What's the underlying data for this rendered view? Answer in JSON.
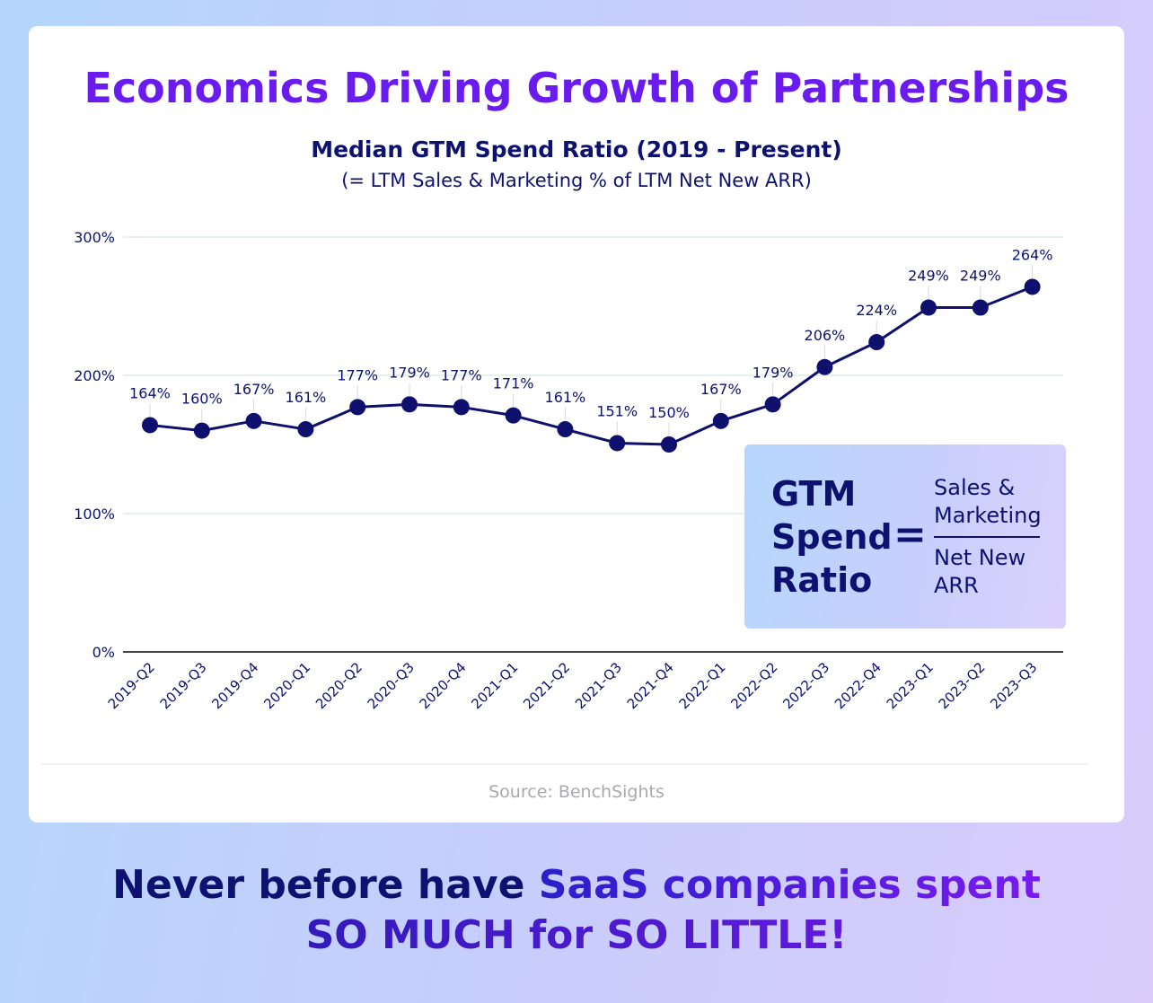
{
  "header": {
    "title": "Economics Driving Growth of Partnerships"
  },
  "chart_data": {
    "type": "line",
    "title": "Median GTM Spend Ratio (2019 - Present)",
    "subtitle": "(= LTM Sales & Marketing % of LTM Net New ARR)",
    "xlabel": "",
    "ylabel": "",
    "ylim": [
      0,
      300
    ],
    "yticks": [
      0,
      100,
      200,
      300
    ],
    "ytick_labels": [
      "0%",
      "100%",
      "200%",
      "300%"
    ],
    "categories": [
      "2019-Q2",
      "2019-Q3",
      "2019-Q4",
      "2020-Q1",
      "2020-Q2",
      "2020-Q3",
      "2020-Q4",
      "2021-Q1",
      "2021-Q2",
      "2021-Q3",
      "2021-Q4",
      "2022-Q1",
      "2022-Q2",
      "2022-Q3",
      "2022-Q4",
      "2023-Q1",
      "2023-Q2",
      "2023-Q3"
    ],
    "series": [
      {
        "name": "Median GTM Spend Ratio",
        "values": [
          164,
          160,
          167,
          161,
          177,
          179,
          177,
          171,
          161,
          151,
          150,
          167,
          179,
          206,
          224,
          249,
          249,
          264
        ]
      }
    ],
    "data_labels": [
      "164%",
      "160%",
      "167%",
      "161%",
      "177%",
      "179%",
      "177%",
      "171%",
      "161%",
      "151%",
      "150%",
      "167%",
      "179%",
      "206%",
      "224%",
      "249%",
      "249%",
      "264%"
    ],
    "grid": true
  },
  "formula": {
    "left_lines": [
      "GTM",
      "Spend",
      "Ratio"
    ],
    "equals": "=",
    "numerator_lines": [
      "Sales &",
      "Marketing"
    ],
    "denominator_lines": [
      "Net New",
      "ARR"
    ]
  },
  "source": "Source: BenchSights",
  "tagline": {
    "part1": "Never before have ",
    "part2": "SaaS companies spent",
    "line2": "SO MUCH for SO LITTLE!"
  },
  "colors": {
    "title": "#6a1bf0",
    "navy": "#0d1270",
    "line": "#0f0f6e",
    "grid": "#e4f1ef"
  }
}
